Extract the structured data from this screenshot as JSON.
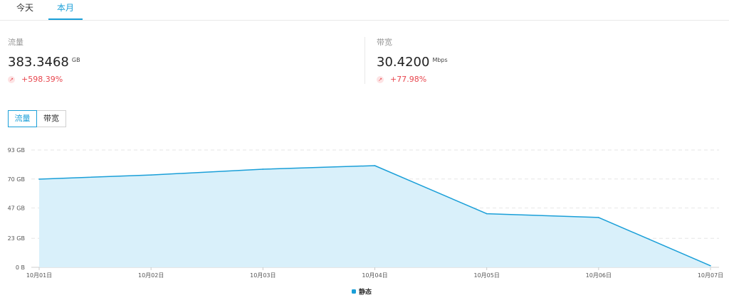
{
  "tabs": [
    {
      "label": "今天",
      "active": false
    },
    {
      "label": "本月",
      "active": true
    }
  ],
  "stats": [
    {
      "label": "流量",
      "value": "383.3468",
      "unit": "GB",
      "change": "+598.39%"
    },
    {
      "label": "带宽",
      "value": "30.4200",
      "unit": "Mbps",
      "change": "+77.98%"
    }
  ],
  "toggle": [
    {
      "label": "流量",
      "active": true
    },
    {
      "label": "带宽",
      "active": false
    }
  ],
  "colors": {
    "accent": "#1a9fd8",
    "up": "#e8474f",
    "area_fill": "#d9f0fa"
  },
  "chart_data": {
    "type": "area",
    "x": [
      "10月01日",
      "10月02日",
      "10月03日",
      "10月04日",
      "10月05日",
      "10月06日",
      "10月07日"
    ],
    "series": [
      {
        "name": "静态",
        "values": [
          69.9,
          73.2,
          77.8,
          80.6,
          42.5,
          39.5,
          1.2
        ]
      }
    ],
    "y_ticks": [
      "0 B",
      "23 GB",
      "47 GB",
      "70 GB",
      "93 GB"
    ],
    "y_tick_values": [
      0,
      23,
      47,
      70,
      93
    ],
    "ylim": [
      0,
      93
    ],
    "grid": true,
    "legend_position": "bottom-center"
  }
}
